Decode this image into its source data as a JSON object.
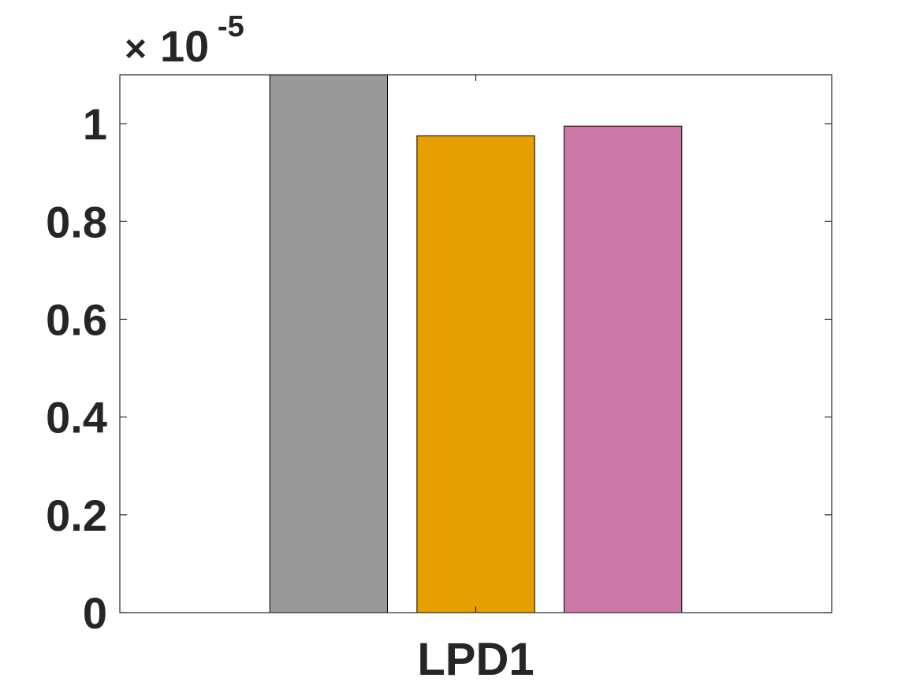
{
  "chart_data": {
    "type": "bar",
    "categories": [
      "LPD1"
    ],
    "series": [
      {
        "values": [
          1.1e-05
        ],
        "color": "#999999"
      },
      {
        "values": [
          9.75e-06
        ],
        "color": "#E69F00"
      },
      {
        "values": [
          9.95e-06
        ],
        "color": "#CC79A7"
      }
    ],
    "ylim": [
      0,
      1.1e-05
    ],
    "y_ticks": [
      0,
      0.2,
      0.4,
      0.6,
      0.8,
      1
    ],
    "y_tick_labels": [
      "0",
      "0.2",
      "0.4",
      "0.6",
      "0.8",
      "1"
    ],
    "y_multiplier": {
      "times": "×",
      "base": "10",
      "exponent": "-5"
    },
    "grid": false,
    "legend": "none"
  }
}
